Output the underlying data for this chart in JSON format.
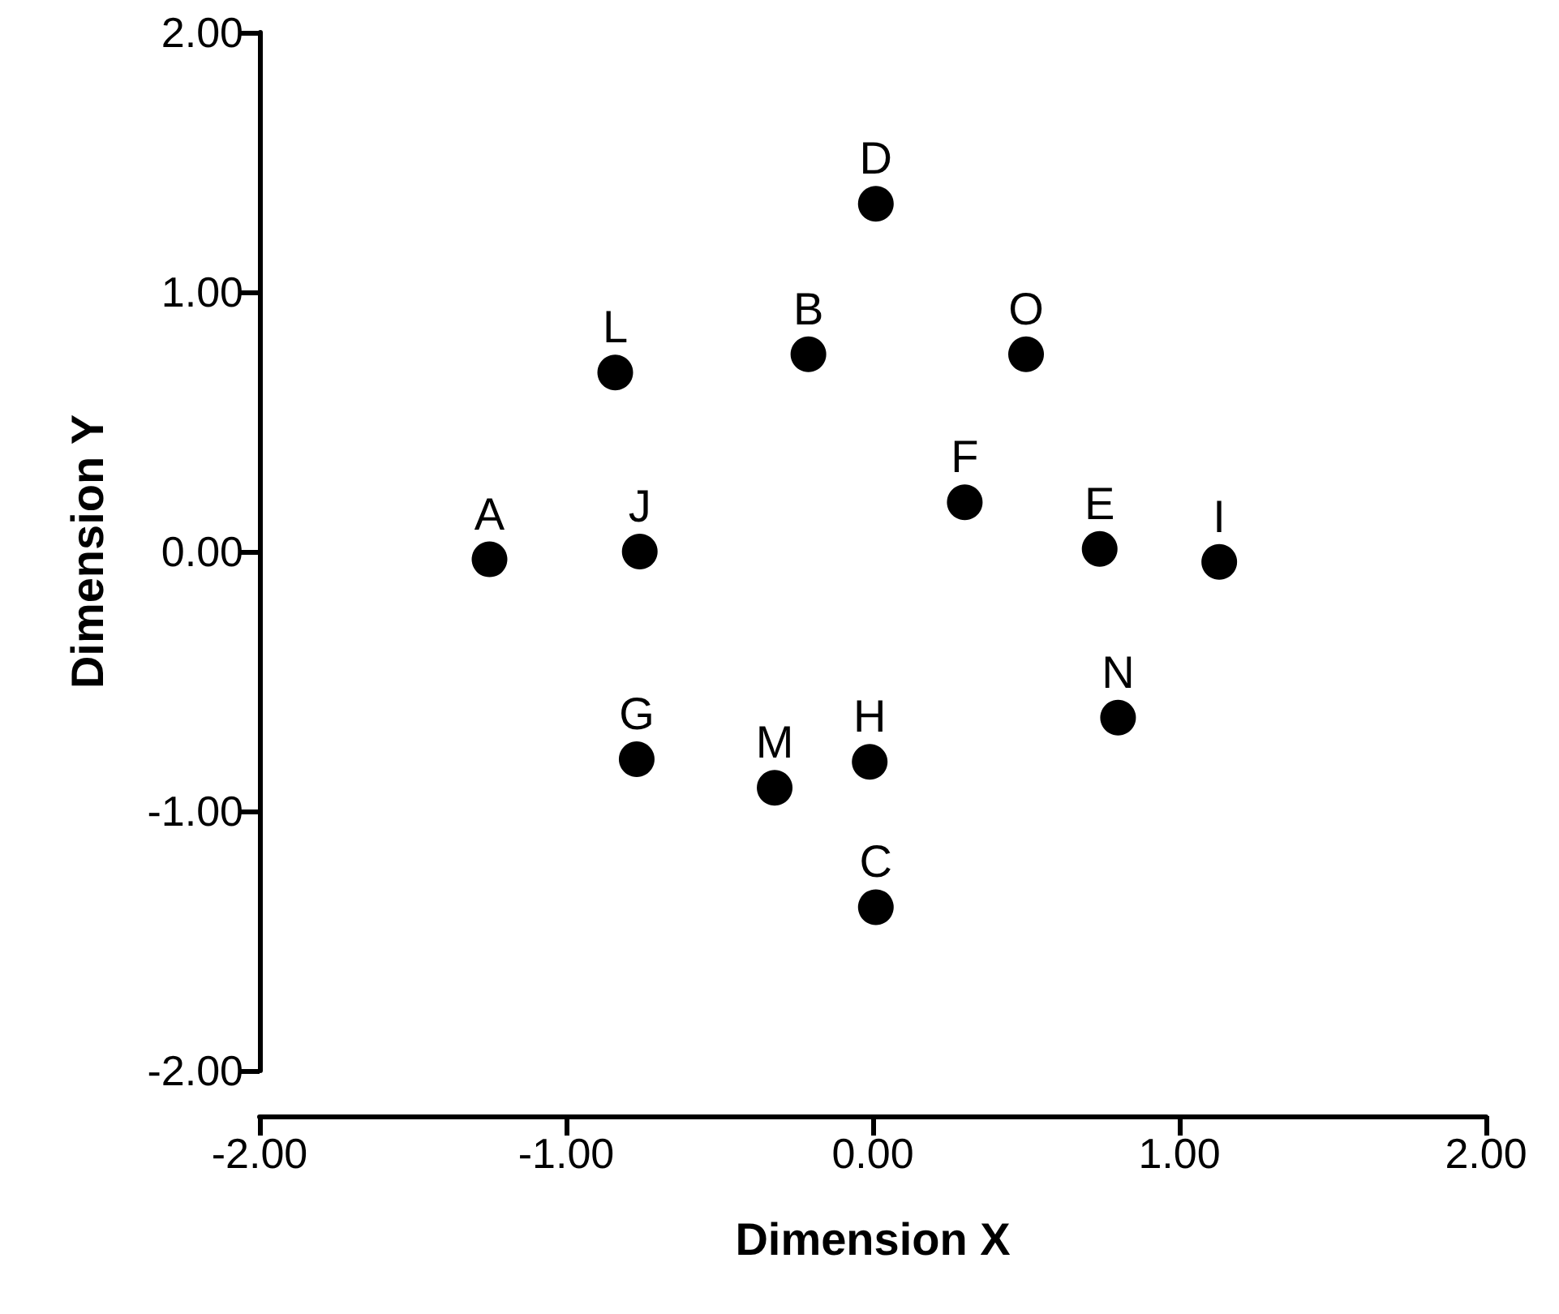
{
  "chart_data": {
    "type": "scatter",
    "xlabel": "Dimension X",
    "ylabel": "Dimension Y",
    "x": [
      -1.25,
      -0.76,
      -0.84,
      -0.21,
      0.01,
      0.5,
      0.3,
      0.74,
      1.13,
      0.8,
      -0.77,
      -0.32,
      -0.01,
      0.01
    ],
    "values": [
      -0.03,
      0.0,
      0.69,
      0.76,
      1.34,
      0.76,
      0.19,
      0.01,
      -0.04,
      -0.64,
      -0.8,
      -0.91,
      -0.81,
      -1.37
    ],
    "color": "#000000",
    "marker": "circle",
    "grid": false,
    "xlim": [
      -2,
      2
    ],
    "ylim": [
      -2,
      2
    ],
    "xticks": [
      {
        "value": -2,
        "label": "-2.00"
      },
      {
        "value": -1,
        "label": "-1.00"
      },
      {
        "value": 0,
        "label": "0.00"
      },
      {
        "value": 1,
        "label": "1.00"
      },
      {
        "value": 2,
        "label": "2.00"
      }
    ],
    "yticks": [
      {
        "value": -2,
        "label": "-2.00"
      },
      {
        "value": -1,
        "label": "-1.00"
      },
      {
        "value": 0,
        "label": "0.00"
      },
      {
        "value": 1,
        "label": "1.00"
      },
      {
        "value": 2,
        "label": "2.00"
      }
    ],
    "annotations": [
      {
        "text": "A",
        "x": -1.25,
        "y": -0.03
      },
      {
        "text": "J",
        "x": -0.76,
        "y": 0.0
      },
      {
        "text": "L",
        "x": -0.84,
        "y": 0.69
      },
      {
        "text": "B",
        "x": -0.21,
        "y": 0.76
      },
      {
        "text": "D",
        "x": 0.01,
        "y": 1.34
      },
      {
        "text": "O",
        "x": 0.5,
        "y": 0.76
      },
      {
        "text": "F",
        "x": 0.3,
        "y": 0.19
      },
      {
        "text": "E",
        "x": 0.74,
        "y": 0.01
      },
      {
        "text": "I",
        "x": 1.13,
        "y": -0.04
      },
      {
        "text": "N",
        "x": 0.8,
        "y": -0.64
      },
      {
        "text": "G",
        "x": -0.77,
        "y": -0.8
      },
      {
        "text": "M",
        "x": -0.32,
        "y": -0.91
      },
      {
        "text": "H",
        "x": -0.01,
        "y": -0.81
      },
      {
        "text": "C",
        "x": 0.01,
        "y": -1.37
      }
    ]
  }
}
